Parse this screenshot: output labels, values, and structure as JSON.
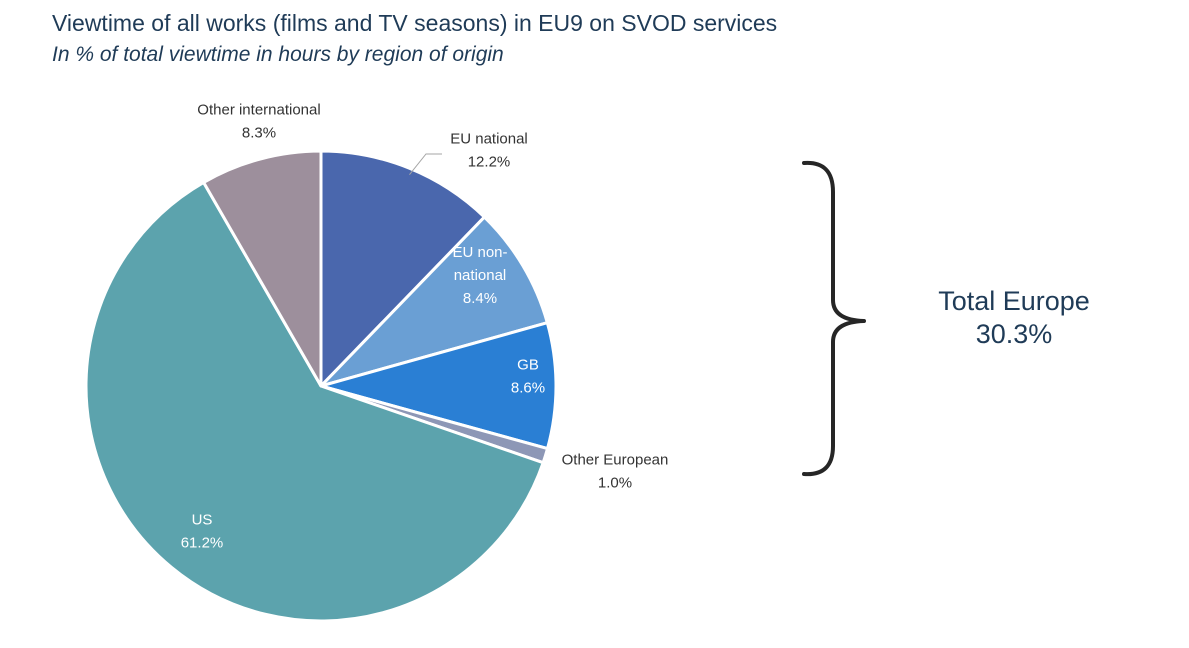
{
  "chart_data": {
    "type": "pie",
    "title": "Viewtime of all works (films and TV seasons) in EU9 on SVOD services",
    "subtitle": "In % of total viewtime in hours by region of origin",
    "slices": [
      {
        "name": "EU national",
        "label_lines": [
          "EU national"
        ],
        "value": 12.2,
        "value_label": "12.2%",
        "color": "#4a67ad"
      },
      {
        "name": "EU non-national",
        "label_lines": [
          "EU non-",
          "national"
        ],
        "value": 8.4,
        "value_label": "8.4%",
        "color": "#6a9fd4"
      },
      {
        "name": "GB",
        "label_lines": [
          "GB"
        ],
        "value": 8.6,
        "value_label": "8.6%",
        "color": "#2a7fd4"
      },
      {
        "name": "Other European",
        "label_lines": [
          "Other European"
        ],
        "value": 1.0,
        "value_label": "1.0%",
        "color": "#8d97b6"
      },
      {
        "name": "US",
        "label_lines": [
          "US"
        ],
        "value": 61.2,
        "value_label": "61.2%",
        "color": "#5ca3ad"
      },
      {
        "name": "Other international",
        "label_lines": [
          "Other international"
        ],
        "value": 8.3,
        "value_label": "8.3%",
        "color": "#9d8f9c"
      }
    ]
  },
  "annotation": {
    "label": "Total Europe",
    "value_label": "30.3%",
    "value": 30.3
  }
}
